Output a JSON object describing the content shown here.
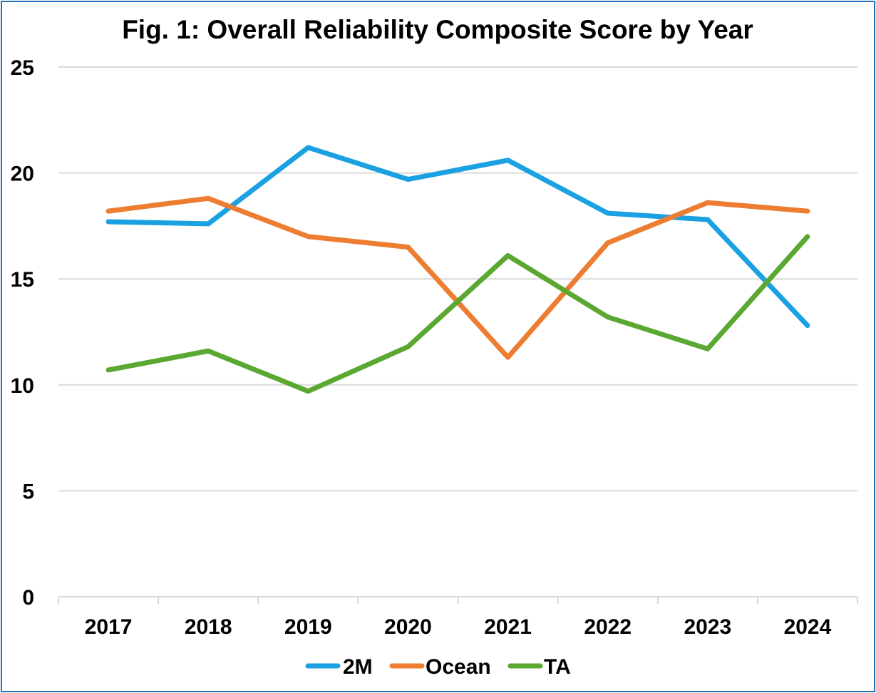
{
  "chart_data": {
    "type": "line",
    "title": "Fig. 1: Overall Reliability Composite Score by Year",
    "xlabel": "",
    "ylabel": "",
    "categories": [
      "2017",
      "2018",
      "2019",
      "2020",
      "2021",
      "2022",
      "2023",
      "2024"
    ],
    "ylim": [
      0,
      25
    ],
    "yticks": [
      0,
      5,
      10,
      15,
      20,
      25
    ],
    "grid": true,
    "legend_position": "bottom",
    "series": [
      {
        "name": "2M",
        "color": "#1ba1e2",
        "values": [
          17.7,
          17.6,
          21.2,
          19.7,
          20.6,
          18.1,
          17.8,
          12.8
        ]
      },
      {
        "name": "Ocean",
        "color": "#ed7d31",
        "values": [
          18.2,
          18.8,
          17.0,
          16.5,
          11.3,
          16.7,
          18.6,
          18.2
        ]
      },
      {
        "name": "TA",
        "color": "#5aa832",
        "values": [
          10.7,
          11.6,
          9.7,
          11.8,
          16.1,
          13.2,
          11.7,
          17.0
        ]
      }
    ]
  }
}
